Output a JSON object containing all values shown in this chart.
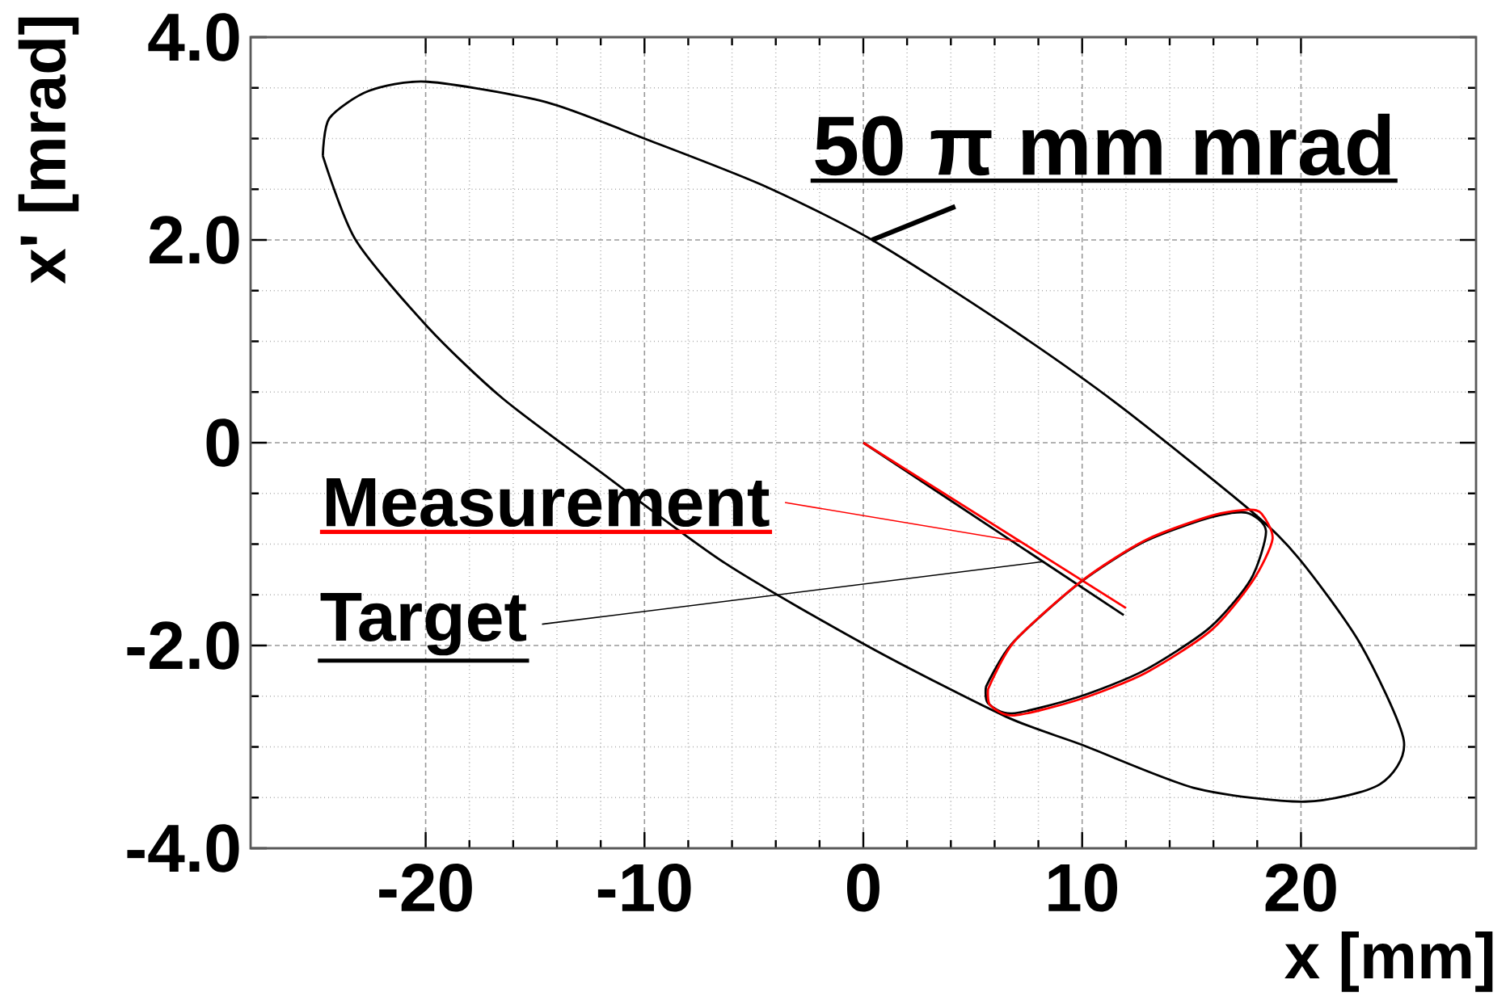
{
  "chart_data": {
    "type": "line",
    "xlabel": "x [mm]",
    "ylabel": "x' [mrad]",
    "xlim": [
      -28,
      28
    ],
    "ylim": [
      -4,
      4
    ],
    "xticks": [
      -20,
      -10,
      0,
      10,
      20
    ],
    "yticks": [
      {
        "value": 4,
        "label": "4.0"
      },
      {
        "value": 2,
        "label": "2.0"
      },
      0,
      {
        "value": -2,
        "label": "-2.0"
      },
      {
        "value": -4,
        "label": "-4.0"
      }
    ],
    "grid": true,
    "annotations": [
      "50 π mm mrad"
    ],
    "series": [
      {
        "name": "Target",
        "color": "#000000",
        "x": [
          0,
          11.9
        ],
        "values": [
          0,
          -1.7
        ]
      },
      {
        "name": "Measurement",
        "color": "#ff0000",
        "x": [
          0,
          12.0
        ],
        "values": [
          0,
          -1.63
        ]
      }
    ]
  }
}
